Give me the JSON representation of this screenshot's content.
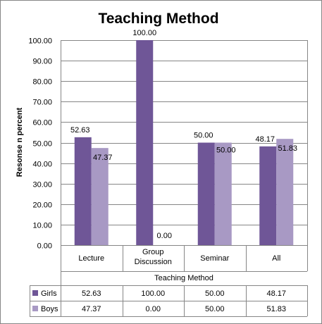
{
  "chart_data": {
    "type": "bar",
    "title": "Teaching Method",
    "xlabel": "Teaching Method",
    "ylabel": "Resonse n percent",
    "ylim": [
      0,
      100
    ],
    "ytick_labels": [
      "0.00",
      "10.00",
      "20.00",
      "30.00",
      "40.00",
      "50.00",
      "60.00",
      "70.00",
      "80.00",
      "90.00",
      "100.00"
    ],
    "yticks": [
      0,
      10,
      20,
      30,
      40,
      50,
      60,
      70,
      80,
      90,
      100
    ],
    "categories": [
      {
        "lines": [
          "Lecture"
        ]
      },
      {
        "lines": [
          "Group",
          "Discussion"
        ]
      },
      {
        "lines": [
          "Seminar"
        ]
      },
      {
        "lines": [
          "All"
        ]
      }
    ],
    "series": [
      {
        "name": "Girls",
        "color": "#6F5697",
        "values": [
          52.63,
          100.0,
          50.0,
          48.17
        ],
        "labels": [
          "52.63",
          "100.00",
          "50.00",
          "48.17"
        ]
      },
      {
        "name": "Boys",
        "color": "#A899C4",
        "values": [
          47.37,
          0.0,
          50.0,
          51.83
        ],
        "labels": [
          "47.37",
          "0.00",
          "50.00",
          "51.83"
        ]
      }
    ],
    "grid": true,
    "legend": "data-table"
  }
}
